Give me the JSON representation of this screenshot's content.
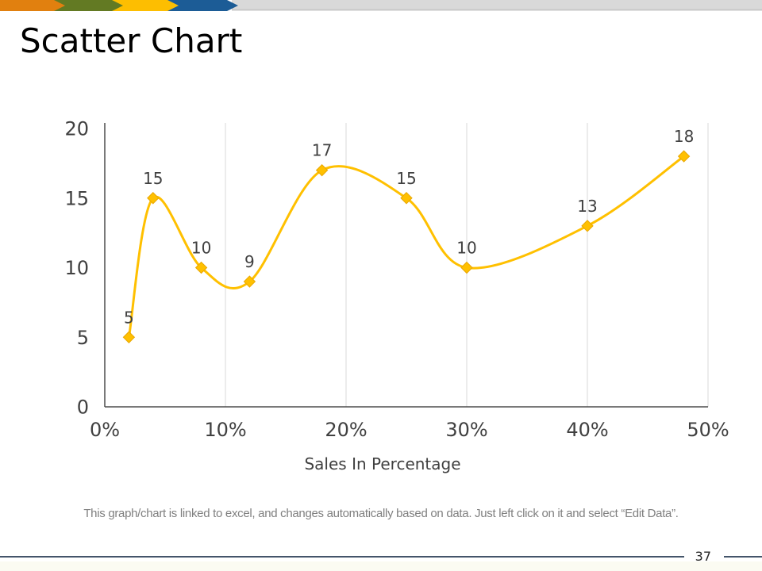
{
  "slide": {
    "title": "Scatter Chart",
    "page_number": "37",
    "footer_note": "This graph/chart is linked to excel, and changes automatically based on data. Just left click on it and select “Edit Data”.",
    "banner": {
      "arrow_colors": [
        "#E1800F",
        "#637A23",
        "#FDBE01",
        "#1C5C96"
      ],
      "bar_color": "#D9D9D9",
      "bar_edge_color": "#C8C8C8"
    },
    "rule_color": "#44546A"
  },
  "chart_data": {
    "type": "scatter",
    "line_style": "smooth",
    "title": "",
    "xlabel": "Sales In Percentage",
    "ylabel": "",
    "x_percent": [
      2,
      4,
      8,
      12,
      18,
      25,
      30,
      40,
      48
    ],
    "y": [
      5,
      15,
      10,
      9,
      17,
      15,
      10,
      13,
      18
    ],
    "data_labels": [
      "5",
      "15",
      "10",
      "9",
      "17",
      "15",
      "10",
      "13",
      "18"
    ],
    "xlim": [
      0,
      50
    ],
    "ylim": [
      0,
      20
    ],
    "x_ticks": [
      {
        "v": 0,
        "label": "0%"
      },
      {
        "v": 10,
        "label": "10%"
      },
      {
        "v": 20,
        "label": "20%"
      },
      {
        "v": 30,
        "label": "30%"
      },
      {
        "v": 40,
        "label": "40%"
      },
      {
        "v": 50,
        "label": "50%"
      }
    ],
    "y_ticks": [
      {
        "v": 0,
        "label": "0"
      },
      {
        "v": 5,
        "label": "5"
      },
      {
        "v": 10,
        "label": "10"
      },
      {
        "v": 15,
        "label": "15"
      },
      {
        "v": 20,
        "label": "20"
      }
    ],
    "grid": "vertical-major-only",
    "legend": "none",
    "colors": {
      "line": "#FFC000",
      "marker": "#FFC000",
      "marker_edge": "#E9A702",
      "axis": "#4D4D4D",
      "grid": "#D9D9D9",
      "text": "#404040"
    }
  }
}
